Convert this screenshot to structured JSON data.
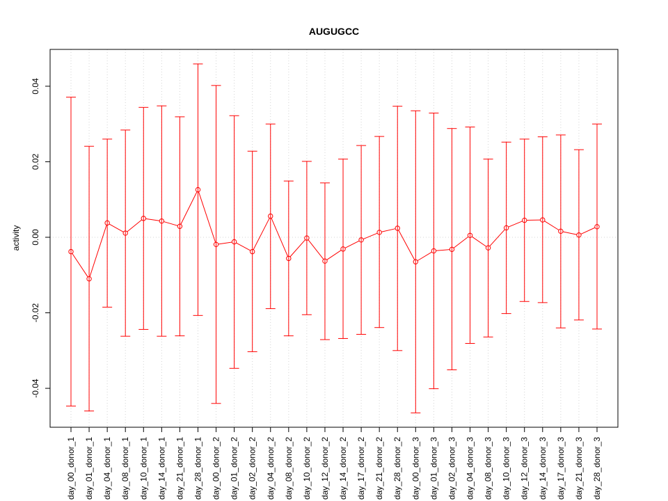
{
  "chart_data": {
    "type": "line",
    "title": "AUGUGCC",
    "xlabel": "",
    "ylabel": "activity",
    "ylim": [
      -0.05,
      0.05
    ],
    "yticks": [
      -0.04,
      -0.02,
      0.0,
      0.02,
      0.04
    ],
    "ytick_labels": [
      "-0.04",
      "-0.02",
      "0.00",
      "0.02",
      "0.04"
    ],
    "grid": true,
    "error_bars": true,
    "colors": {
      "series": "#ff0000",
      "grid": "#d3d3d3",
      "axis": "#000000"
    },
    "categories": [
      "day_00_donor_1",
      "day_01_donor_1",
      "day_04_donor_1",
      "day_08_donor_1",
      "day_10_donor_1",
      "day_14_donor_1",
      "day_21_donor_1",
      "day_28_donor_1",
      "day_00_donor_2",
      "day_01_donor_2",
      "day_02_donor_2",
      "day_04_donor_2",
      "day_08_donor_2",
      "day_10_donor_2",
      "day_12_donor_2",
      "day_14_donor_2",
      "day_17_donor_2",
      "day_21_donor_2",
      "day_28_donor_2",
      "day_00_donor_3",
      "day_01_donor_3",
      "day_02_donor_3",
      "day_04_donor_3",
      "day_08_donor_3",
      "day_10_donor_3",
      "day_12_donor_3",
      "day_14_donor_3",
      "day_17_donor_3",
      "day_21_donor_3",
      "day_28_donor_3"
    ],
    "series": [
      {
        "values": [
          -0.0038,
          -0.011,
          0.0038,
          0.0011,
          0.005,
          0.0043,
          0.0029,
          0.0126,
          -0.0019,
          -0.0012,
          -0.0038,
          0.0056,
          -0.0056,
          -0.0002,
          -0.0063,
          -0.0031,
          -0.0007,
          0.0013,
          0.0024,
          -0.0065,
          -0.0036,
          -0.0032,
          0.0005,
          -0.0028,
          0.0025,
          0.0045,
          0.0046,
          0.0016,
          0.0006,
          0.0028
        ],
        "upper": [
          0.0371,
          0.0241,
          0.026,
          0.0284,
          0.0344,
          0.0348,
          0.0319,
          0.0459,
          0.0402,
          0.0322,
          0.0228,
          0.03,
          0.0149,
          0.0201,
          0.0144,
          0.0207,
          0.0243,
          0.0267,
          0.0347,
          0.0335,
          0.0329,
          0.0288,
          0.0292,
          0.0207,
          0.0252,
          0.026,
          0.0266,
          0.0271,
          0.0232,
          0.03
        ],
        "lower": [
          -0.0447,
          -0.046,
          -0.0185,
          -0.0262,
          -0.0244,
          -0.0262,
          -0.0261,
          -0.0207,
          -0.044,
          -0.0347,
          -0.0303,
          -0.0189,
          -0.0261,
          -0.0205,
          -0.0271,
          -0.0268,
          -0.0257,
          -0.0239,
          -0.03,
          -0.0465,
          -0.0401,
          -0.0351,
          -0.0281,
          -0.0264,
          -0.0202,
          -0.017,
          -0.0173,
          -0.024,
          -0.0219,
          -0.0243
        ]
      }
    ]
  }
}
